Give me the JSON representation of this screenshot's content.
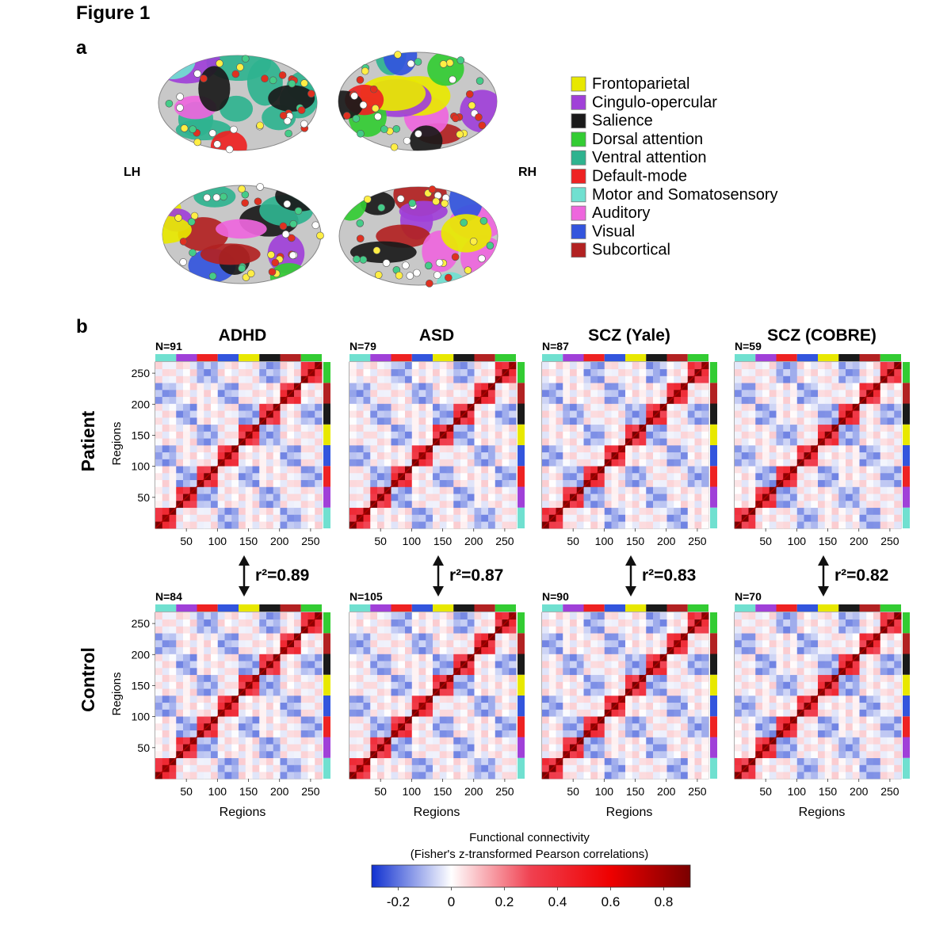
{
  "figure_title": "Figure 1",
  "panel_a_label": "a",
  "panel_b_label": "b",
  "hemisphere_labels": [
    "LH",
    "RH"
  ],
  "legend": {
    "items": [
      {
        "label": "Frontoparietal",
        "color": "#e8e800"
      },
      {
        "label": "Cingulo-opercular",
        "color": "#a040d8"
      },
      {
        "label": "Salience",
        "color": "#1a1a1a"
      },
      {
        "label": "Dorsal attention",
        "color": "#33cc33"
      },
      {
        "label": "Ventral attention",
        "color": "#2fb38f"
      },
      {
        "label": "Default-mode",
        "color": "#ee2222"
      },
      {
        "label": "Motor and Somatosensory",
        "color": "#70e0d0"
      },
      {
        "label": "Auditory",
        "color": "#ee66dd"
      },
      {
        "label": "Visual",
        "color": "#3355dd"
      },
      {
        "label": "Subcortical",
        "color": "#b22222"
      }
    ]
  },
  "row_labels": [
    "Patient",
    "Control"
  ],
  "columns": [
    {
      "title": "ADHD",
      "patient_n": "N=91",
      "control_n": "N=84",
      "r2": "r²=0.89"
    },
    {
      "title": "ASD",
      "patient_n": "N=79",
      "control_n": "N=105",
      "r2": "r²=0.87"
    },
    {
      "title": "SCZ (Yale)",
      "patient_n": "N=87",
      "control_n": "N=90",
      "r2": "r²=0.83"
    },
    {
      "title": "SCZ (COBRE)",
      "patient_n": "N=59",
      "control_n": "N=70",
      "r2": "r²=0.82"
    }
  ],
  "network_bar_colors": [
    "#70e0d0",
    "#a040d8",
    "#ee2222",
    "#3355dd",
    "#e8e800",
    "#1a1a1a",
    "#b22222",
    "#33cc33"
  ],
  "chart_data": {
    "type": "heatmap",
    "x_label": "Regions",
    "y_label": "Regions",
    "x_ticks": [
      50,
      100,
      150,
      200,
      250
    ],
    "y_ticks": [
      50,
      100,
      150,
      200,
      250
    ],
    "x_range": [
      0,
      268
    ],
    "y_range": [
      0,
      268
    ],
    "colorbar": {
      "title_line1": "Functional connectivity",
      "title_line2": "(Fisher's z-transformed Pearson correlations)",
      "range": [
        -0.3,
        0.9
      ],
      "ticks": [
        -0.2,
        0,
        0.2,
        0.4,
        0.6,
        0.8
      ],
      "tick_labels": [
        "-0.2",
        "0",
        "0.2",
        "0.4",
        "0.6",
        "0.8"
      ],
      "stops": [
        "#1030d0",
        "#ffffff",
        "#f04050",
        "#ee0000",
        "#7a0000"
      ]
    }
  }
}
